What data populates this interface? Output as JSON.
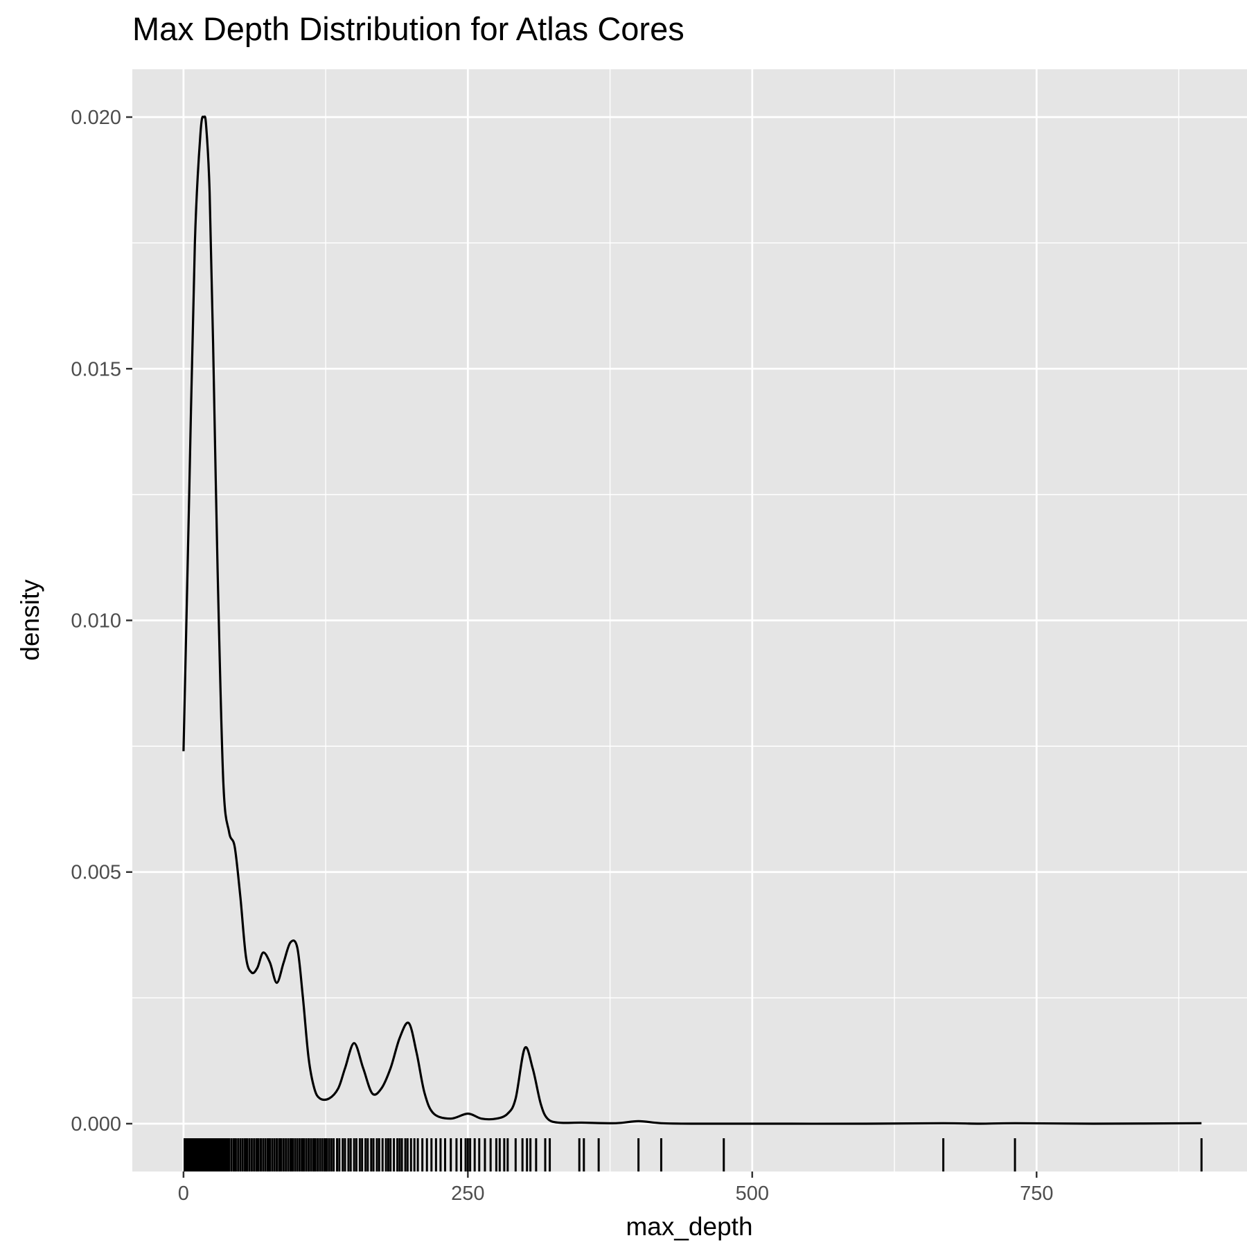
{
  "chart_data": {
    "type": "density",
    "title": "Max Depth Distribution for Atlas Cores",
    "xlabel": "max_depth",
    "ylabel": "density",
    "xlim": [
      -45,
      935
    ],
    "ylim": [
      -0.00095,
      0.02095
    ],
    "x_ticks": [
      0,
      250,
      500,
      750
    ],
    "y_ticks": [
      0.0,
      0.005,
      0.01,
      0.015,
      0.02
    ],
    "x_tick_labels": [
      "0",
      "250",
      "500",
      "750"
    ],
    "y_tick_labels": [
      "0.000",
      "0.005",
      "0.010",
      "0.015",
      "0.020"
    ],
    "x_minor_breaks": [
      125,
      375,
      625,
      875
    ],
    "y_minor_breaks": [
      0.0025,
      0.0075,
      0.0125,
      0.0175
    ],
    "grid": true,
    "panel_background": "#e5e5e5",
    "grid_color": "#ffffff",
    "line_color": "#000000",
    "density_curve": {
      "x": [
        0,
        5,
        10,
        15,
        18,
        20,
        23,
        26,
        30,
        35,
        40,
        45,
        50,
        55,
        60,
        65,
        70,
        76,
        82,
        88,
        94,
        100,
        105,
        110,
        115,
        120,
        128,
        136,
        142,
        150,
        158,
        166,
        174,
        182,
        190,
        198,
        205,
        212,
        220,
        235,
        250,
        262,
        275,
        285,
        292,
        300,
        307,
        314,
        320,
        330,
        350,
        380,
        400,
        420,
        450,
        500,
        600,
        668,
        700,
        731,
        800,
        895
      ],
      "y": [
        0.0074,
        0.0125,
        0.0175,
        0.0197,
        0.02,
        0.0198,
        0.0185,
        0.0155,
        0.011,
        0.0068,
        0.0058,
        0.0055,
        0.0045,
        0.0033,
        0.003,
        0.0031,
        0.0034,
        0.0032,
        0.0028,
        0.0032,
        0.0036,
        0.0035,
        0.0025,
        0.0013,
        0.0007,
        0.0005,
        0.0005,
        0.0007,
        0.0011,
        0.0016,
        0.0011,
        0.0006,
        0.0007,
        0.0011,
        0.0017,
        0.002,
        0.0014,
        0.0006,
        0.0002,
        0.0001,
        0.0002,
        0.0001,
        0.0001,
        0.0002,
        0.0005,
        0.0015,
        0.0011,
        0.0004,
        0.0001,
        2e-05,
        2e-05,
        1e-05,
        5e-05,
        1e-05,
        0.0,
        0.0,
        0.0,
        1e-05,
        0.0,
        1e-05,
        0.0,
        1e-05
      ]
    },
    "rug_x": [
      1,
      2,
      3,
      4,
      5,
      6,
      7,
      8,
      9,
      10,
      11,
      12,
      13,
      14,
      15,
      16,
      17,
      18,
      19,
      20,
      21,
      22,
      23,
      24,
      25,
      26,
      27,
      28,
      29,
      30,
      31,
      32,
      33,
      34,
      35,
      36,
      37,
      38,
      39,
      40,
      42,
      44,
      45,
      46,
      48,
      50,
      52,
      54,
      55,
      56,
      58,
      60,
      62,
      64,
      65,
      66,
      68,
      70,
      72,
      74,
      75,
      76,
      78,
      80,
      82,
      84,
      85,
      86,
      88,
      90,
      92,
      94,
      95,
      96,
      98,
      100,
      102,
      104,
      105,
      106,
      108,
      110,
      112,
      114,
      115,
      116,
      118,
      120,
      122,
      124,
      125,
      126,
      128,
      130,
      132,
      135,
      137,
      140,
      142,
      145,
      147,
      150,
      152,
      155,
      157,
      160,
      162,
      165,
      167,
      170,
      172,
      175,
      178,
      180,
      182,
      185,
      188,
      190,
      192,
      195,
      197,
      200,
      203,
      206,
      210,
      214,
      218,
      222,
      226,
      230,
      235,
      240,
      244,
      248,
      250,
      252,
      256,
      260,
      265,
      270,
      275,
      278,
      282,
      285,
      292,
      298,
      302,
      305,
      310,
      318,
      322,
      348,
      352,
      365,
      400,
      420,
      475,
      668,
      731,
      895
    ]
  }
}
